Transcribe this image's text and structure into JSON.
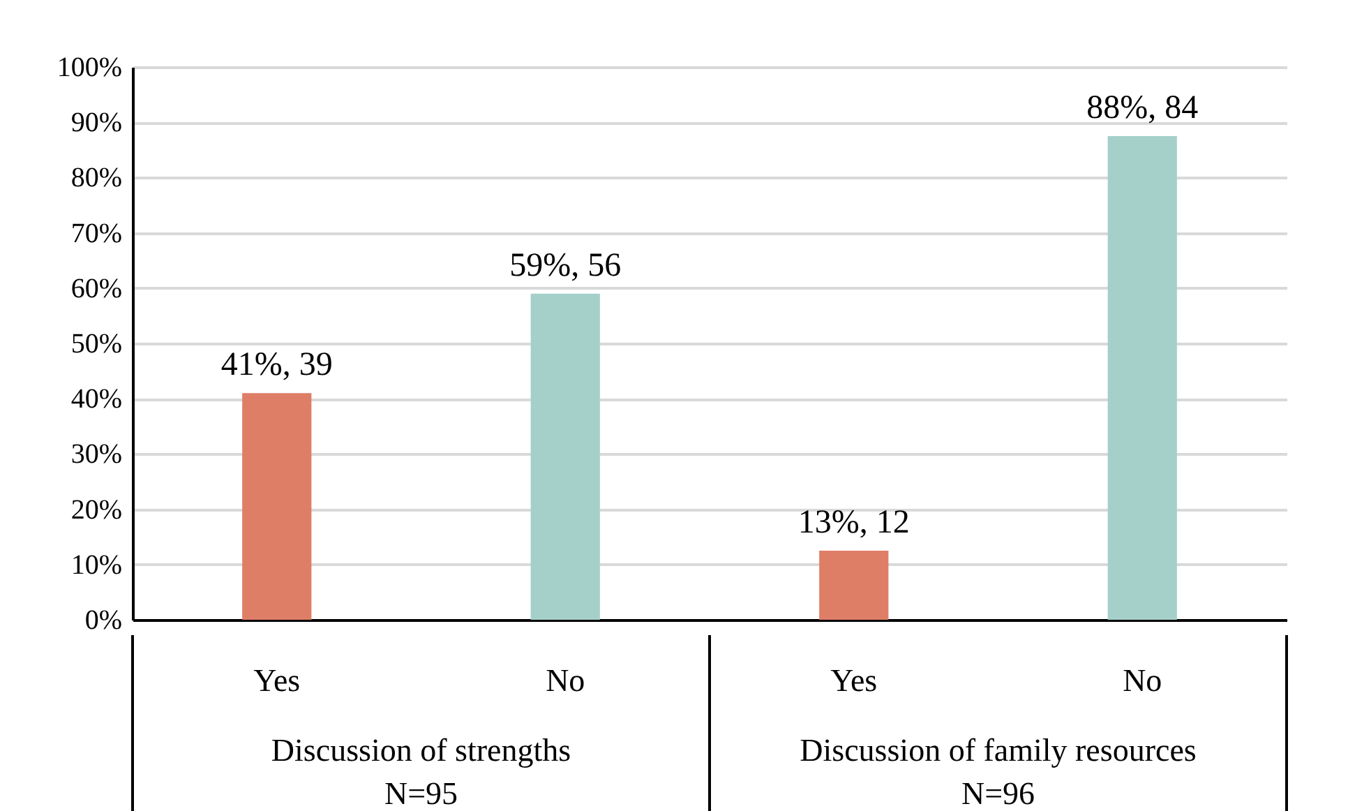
{
  "chart_data": {
    "type": "bar",
    "categories": [
      "Yes",
      "No",
      "Yes",
      "No"
    ],
    "values": [
      41,
      59,
      12.5,
      87.5
    ],
    "colors": [
      "#df7e67",
      "#a5d0ca",
      "#df7e67",
      "#a5d0ca"
    ],
    "value_labels": [
      "41%, 39",
      "59%, 56",
      "13%, 12",
      "88%, 84"
    ],
    "ylim": [
      0,
      100
    ],
    "yticks": [
      {
        "value": 0,
        "label": "0%"
      },
      {
        "value": 10,
        "label": "10%"
      },
      {
        "value": 20,
        "label": "20%"
      },
      {
        "value": 30,
        "label": "30%"
      },
      {
        "value": 40,
        "label": "40%"
      },
      {
        "value": 50,
        "label": "50%"
      },
      {
        "value": 60,
        "label": "60%"
      },
      {
        "value": 70,
        "label": "70%"
      },
      {
        "value": 80,
        "label": "80%"
      },
      {
        "value": 90,
        "label": "90%"
      },
      {
        "value": 100,
        "label": "100%"
      }
    ],
    "grid": "y",
    "annotations": [
      "Discussion of strengths\nN=95",
      "Discussion of family resources\nN=96"
    ]
  }
}
